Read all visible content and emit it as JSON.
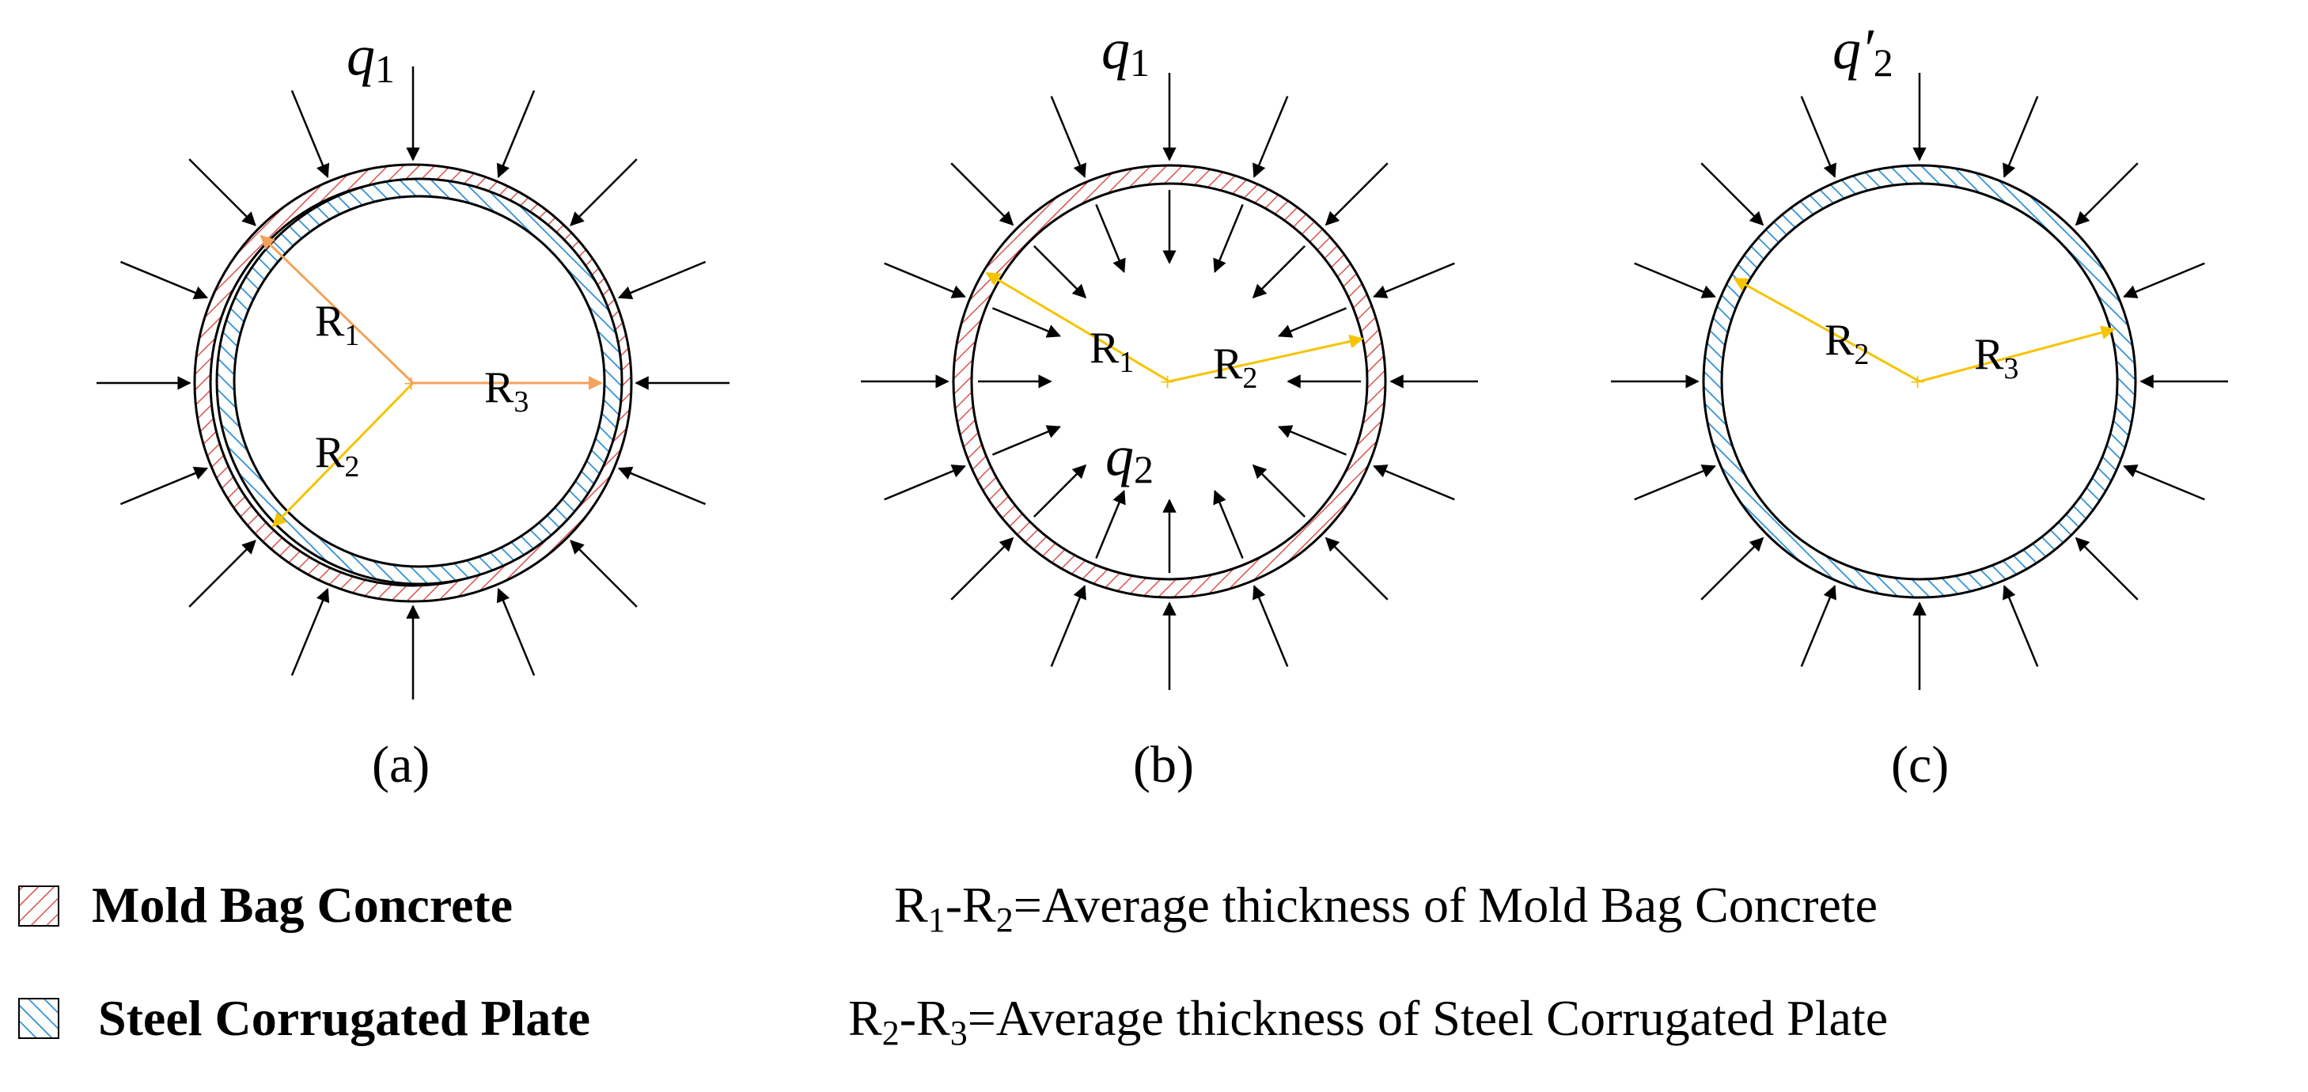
{
  "colors": {
    "concrete_hatch": "#d9534f",
    "steel_hatch": "#2b8fd6",
    "radius_orange": "#f3a35a",
    "radius_yellow": "#f5c400",
    "arrow": "#000000"
  },
  "panels": [
    {
      "id": "a",
      "caption": "(a)",
      "load_outer": "q",
      "load_outer_sub": "1",
      "radii": [
        {
          "name": "R",
          "sub": "1"
        },
        {
          "name": "R",
          "sub": "2"
        },
        {
          "name": "R",
          "sub": "3"
        }
      ]
    },
    {
      "id": "b",
      "caption": "(b)",
      "load_outer": "q",
      "load_outer_sub": "1",
      "load_inner": "q",
      "load_inner_sub": "2",
      "radii": [
        {
          "name": "R",
          "sub": "1"
        },
        {
          "name": "R",
          "sub": "2"
        }
      ]
    },
    {
      "id": "c",
      "caption": "(c)",
      "load_outer": "q′",
      "load_outer_sub": "2",
      "radii": [
        {
          "name": "R",
          "sub": "2"
        },
        {
          "name": "R",
          "sub": "3"
        }
      ]
    }
  ],
  "legend": {
    "concrete_label": "Mold Bag Concrete",
    "steel_label": "Steel Corrugated Plate",
    "eq1": {
      "a": "R",
      "a_sub": "1",
      "dash": "-",
      "b": "R",
      "b_sub": "2",
      "rest": "=Average thickness of Mold Bag Concrete"
    },
    "eq2": {
      "a": "R",
      "a_sub": "2",
      "dash": "-",
      "b": "R",
      "b_sub": "3",
      "rest": "=Average thickness of Steel Corrugated Plate"
    }
  }
}
